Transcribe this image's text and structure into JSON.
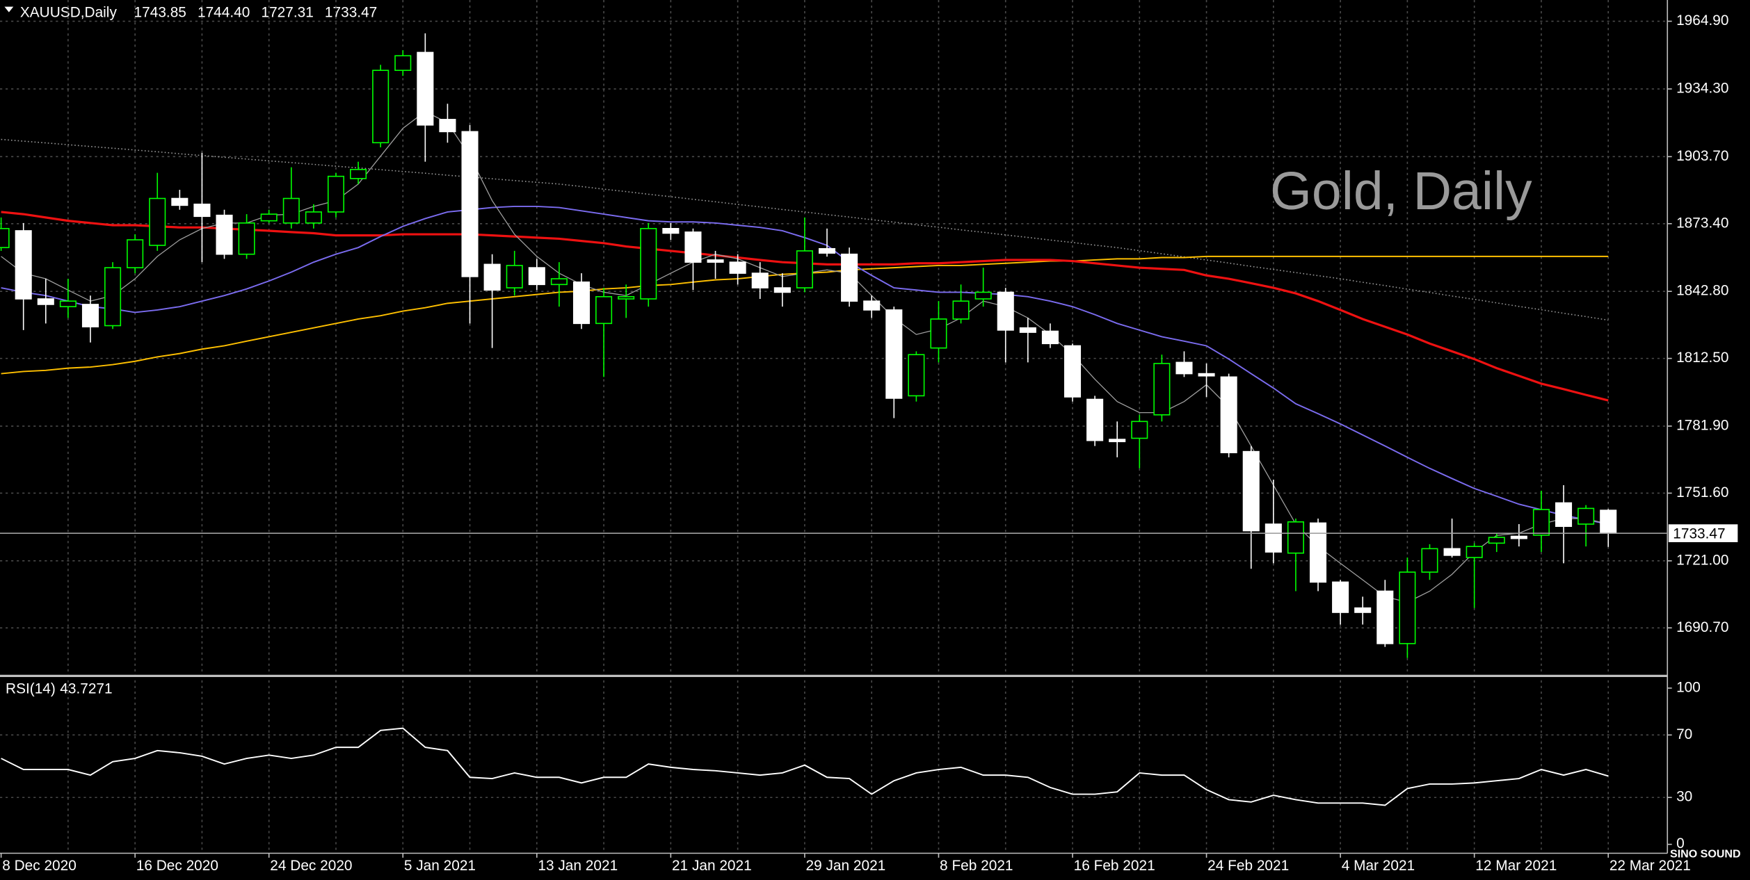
{
  "chart_data": [
    {
      "type": "candlestick",
      "header": {
        "symbol": "XAUUSD,Daily",
        "ohlc": [
          "1743.85",
          "1744.40",
          "1727.31",
          "1733.47"
        ]
      },
      "watermark": "Gold, Daily",
      "categories": [
        "8 Dec 2020",
        null,
        null,
        null,
        null,
        null,
        "16 Dec 2020",
        null,
        null,
        null,
        null,
        null,
        "24 Dec 2020",
        null,
        null,
        null,
        null,
        null,
        "5 Jan 2021",
        null,
        null,
        null,
        null,
        null,
        "13 Jan 2021",
        null,
        null,
        null,
        null,
        null,
        "21 Jan 2021",
        null,
        null,
        null,
        null,
        null,
        "29 Jan 2021",
        null,
        null,
        null,
        null,
        null,
        "8 Feb 2021",
        null,
        null,
        null,
        null,
        null,
        "16 Feb 2021",
        null,
        null,
        null,
        null,
        null,
        "24 Feb 2021",
        null,
        null,
        null,
        null,
        null,
        "4 Mar 2021",
        null,
        null,
        null,
        null,
        null,
        "12 Mar 2021",
        null,
        null,
        null,
        null,
        null,
        "22 Mar 2021"
      ],
      "open": [
        1862.6,
        1870.2,
        1839.4,
        1835.9,
        1836.9,
        1827.3,
        1853.5,
        1863.6,
        1884.8,
        1882.2,
        1877.2,
        1859.6,
        1874.7,
        1873.7,
        1873.7,
        1878.7,
        1893.8,
        1910.0,
        1942.7,
        1950.8,
        1920.5,
        1915.0,
        1855.0,
        1844.4,
        1853.5,
        1845.9,
        1847.0,
        1828.3,
        1839.4,
        1839.4,
        1871.2,
        1869.6,
        1857.0,
        1856.0,
        1851.0,
        1844.4,
        1844.4,
        1862.1,
        1859.6,
        1838.4,
        1834.4,
        1795.6,
        1817.2,
        1830.3,
        1839.4,
        1842.4,
        1826.3,
        1824.8,
        1818.2,
        1794.0,
        1775.9,
        1776.4,
        1787.0,
        1810.7,
        1805.6,
        1804.1,
        1770.4,
        1737.6,
        1724.5,
        1738.1,
        1711.4,
        1699.7,
        1707.3,
        1683.6,
        1715.9,
        1726.5,
        1722.5,
        1729.0,
        1732.1,
        1732.6,
        1747.2,
        1737.6,
        1743.85
      ],
      "high": [
        1876.2,
        1873.7,
        1848.5,
        1848.5,
        1840.9,
        1856.0,
        1868.6,
        1896.4,
        1888.7,
        1905.4,
        1879.7,
        1877.7,
        1879.7,
        1898.9,
        1882.2,
        1896.4,
        1901.4,
        1945.2,
        1951.8,
        1959.4,
        1927.6,
        1918.0,
        1859.6,
        1861.1,
        1857.5,
        1856.0,
        1851.0,
        1844.4,
        1845.9,
        1873.7,
        1873.7,
        1871.2,
        1861.1,
        1859.6,
        1856.0,
        1851.0,
        1876.2,
        1871.2,
        1862.6,
        1840.9,
        1835.9,
        1815.7,
        1838.4,
        1845.9,
        1853.5,
        1844.4,
        1830.8,
        1828.3,
        1819.2,
        1795.6,
        1784.0,
        1787.0,
        1814.2,
        1815.7,
        1810.2,
        1805.6,
        1772.9,
        1757.7,
        1740.1,
        1740.1,
        1712.4,
        1704.8,
        1712.4,
        1722.5,
        1728.5,
        1740.1,
        1729.0,
        1733.6,
        1737.6,
        1752.7,
        1755.2,
        1746.2,
        1744.4
      ],
      "low": [
        1861.1,
        1825.3,
        1828.3,
        1830.8,
        1819.7,
        1825.8,
        1851.0,
        1861.1,
        1879.7,
        1856.0,
        1857.5,
        1857.5,
        1873.7,
        1871.2,
        1871.2,
        1876.2,
        1891.3,
        1907.9,
        1940.2,
        1901.4,
        1910.0,
        1828.3,
        1817.2,
        1840.9,
        1843.4,
        1835.9,
        1825.8,
        1804.1,
        1830.8,
        1835.9,
        1866.1,
        1843.4,
        1848.5,
        1845.9,
        1839.4,
        1835.9,
        1842.4,
        1858.5,
        1835.9,
        1830.8,
        1785.5,
        1793.0,
        1810.7,
        1828.3,
        1835.9,
        1810.7,
        1810.7,
        1817.2,
        1793.0,
        1772.9,
        1767.8,
        1762.8,
        1784.0,
        1804.1,
        1795.1,
        1767.8,
        1717.4,
        1719.9,
        1707.3,
        1707.3,
        1692.2,
        1692.2,
        1682.1,
        1677.1,
        1712.4,
        1722.5,
        1699.7,
        1725.0,
        1727.5,
        1725.0,
        1719.9,
        1727.5,
        1727.31
      ],
      "close": [
        1871.2,
        1839.4,
        1836.9,
        1838.4,
        1826.8,
        1853.5,
        1866.1,
        1884.8,
        1881.7,
        1876.7,
        1859.6,
        1873.7,
        1877.7,
        1884.8,
        1878.7,
        1894.8,
        1897.9,
        1942.7,
        1949.3,
        1918.0,
        1915.0,
        1849.5,
        1843.4,
        1854.5,
        1845.9,
        1848.5,
        1828.3,
        1840.4,
        1840.4,
        1871.2,
        1869.1,
        1856.0,
        1856.0,
        1851.0,
        1844.4,
        1842.4,
        1861.1,
        1860.1,
        1838.4,
        1834.4,
        1794.5,
        1814.2,
        1830.3,
        1838.4,
        1842.4,
        1825.3,
        1824.3,
        1819.2,
        1795.1,
        1775.4,
        1774.9,
        1784.0,
        1810.2,
        1805.6,
        1804.6,
        1769.9,
        1734.6,
        1725.0,
        1738.6,
        1711.4,
        1697.7,
        1697.7,
        1683.6,
        1715.9,
        1726.5,
        1723.5,
        1727.5,
        1731.6,
        1731.1,
        1744.2,
        1736.6,
        1744.7,
        1733.47
      ],
      "up_color": "#00ff00",
      "down_color": "#ffffff",
      "series": [
        {
          "color": "#9a9a9a",
          "style": "dotted",
          "values": [
            1911.5,
            1910.7,
            1909.9,
            1909.1,
            1908.3,
            1907.5,
            1906.7,
            1905.9,
            1905.0,
            1904.2,
            1903.4,
            1902.6,
            1901.8,
            1901.0,
            1900.2,
            1899.4,
            1898.6,
            1897.8,
            1897.0,
            1896.2,
            1895.3,
            1894.5,
            1893.7,
            1892.9,
            1892.1,
            1891.3,
            1890.2,
            1889.0,
            1887.9,
            1886.7,
            1885.6,
            1884.4,
            1883.3,
            1882.1,
            1881.0,
            1879.8,
            1878.7,
            1877.5,
            1876.4,
            1875.2,
            1874.1,
            1872.9,
            1871.8,
            1870.6,
            1869.5,
            1868.3,
            1867.2,
            1866.0,
            1864.9,
            1863.7,
            1862.6,
            1861.2,
            1859.8,
            1858.4,
            1857.0,
            1855.6,
            1854.1,
            1852.7,
            1851.3,
            1849.9,
            1848.5,
            1846.9,
            1845.4,
            1843.8,
            1842.3,
            1840.7,
            1839.2,
            1837.6,
            1836.0,
            1834.5,
            1832.9,
            1831.4,
            1829.8
          ]
        },
        {
          "color": "#ffc000",
          "style": "solid",
          "values": [
            1805.6,
            1806.6,
            1807.1,
            1808.1,
            1808.6,
            1809.7,
            1811.2,
            1813.2,
            1814.7,
            1816.7,
            1818.2,
            1820.3,
            1822.3,
            1824.3,
            1826.3,
            1828.3,
            1830.3,
            1831.8,
            1833.9,
            1835.4,
            1837.4,
            1838.4,
            1839.4,
            1840.4,
            1841.4,
            1842.4,
            1842.9,
            1843.9,
            1844.4,
            1845.4,
            1845.9,
            1847.0,
            1848.0,
            1848.5,
            1849.5,
            1850.5,
            1851.0,
            1851.5,
            1852.5,
            1853.0,
            1853.5,
            1854.0,
            1854.5,
            1854.5,
            1855.0,
            1855.5,
            1856.0,
            1856.5,
            1856.5,
            1857.0,
            1857.5,
            1857.5,
            1858.1,
            1858.1,
            1858.6,
            1858.6,
            1858.6,
            1858.6,
            1858.6,
            1858.6,
            1858.6,
            1858.6,
            1858.6,
            1858.6,
            1858.6,
            1858.6,
            1858.6,
            1858.6,
            1858.6,
            1858.6,
            1858.6,
            1858.6,
            1858.6
          ]
        },
        {
          "color": "#ee1111",
          "style": "thick",
          "values": [
            1878.7,
            1877.7,
            1876.2,
            1874.7,
            1873.7,
            1872.7,
            1872.7,
            1872.2,
            1871.7,
            1871.7,
            1871.2,
            1870.7,
            1870.2,
            1869.6,
            1869.1,
            1868.1,
            1868.1,
            1868.1,
            1868.6,
            1868.6,
            1868.6,
            1868.6,
            1868.1,
            1867.6,
            1867.1,
            1866.6,
            1865.6,
            1864.6,
            1863.1,
            1862.1,
            1861.1,
            1860.1,
            1859.1,
            1858.1,
            1857.0,
            1856.0,
            1855.5,
            1855.0,
            1855.0,
            1855.0,
            1855.0,
            1855.5,
            1855.5,
            1856.0,
            1856.5,
            1857.0,
            1857.0,
            1857.0,
            1856.5,
            1855.5,
            1854.5,
            1853.5,
            1853.0,
            1852.5,
            1850.0,
            1848.5,
            1846.5,
            1844.4,
            1841.9,
            1838.4,
            1834.4,
            1830.3,
            1826.8,
            1823.3,
            1819.2,
            1815.7,
            1812.2,
            1808.1,
            1804.6,
            1801.1,
            1798.6,
            1796.0,
            1793.5
          ]
        },
        {
          "color": "#7b6cf0",
          "style": "solid",
          "values": [
            1844.4,
            1842.4,
            1840.9,
            1838.4,
            1835.9,
            1834.9,
            1833.3,
            1834.4,
            1835.9,
            1838.4,
            1840.9,
            1843.9,
            1847.5,
            1851.5,
            1856.0,
            1859.6,
            1862.6,
            1867.6,
            1872.2,
            1875.7,
            1878.7,
            1879.7,
            1880.7,
            1881.2,
            1881.2,
            1880.7,
            1879.2,
            1877.7,
            1876.2,
            1874.7,
            1874.2,
            1874.2,
            1873.7,
            1872.7,
            1871.7,
            1870.2,
            1867.1,
            1863.6,
            1856.0,
            1850.0,
            1844.4,
            1843.4,
            1842.4,
            1842.4,
            1841.9,
            1841.4,
            1840.4,
            1838.4,
            1835.9,
            1832.3,
            1828.3,
            1825.3,
            1822.3,
            1820.3,
            1818.2,
            1812.2,
            1805.6,
            1799.1,
            1792.0,
            1787.5,
            1782.9,
            1777.9,
            1772.9,
            1767.8,
            1762.8,
            1758.2,
            1753.7,
            1750.2,
            1746.6,
            1744.1,
            1741.6,
            1739.6,
            1737.6
          ]
        },
        {
          "color": "#a0a0a0",
          "style": "thin",
          "values": [
            1858.6,
            1851.0,
            1848.5,
            1843.4,
            1838.4,
            1840.9,
            1848.5,
            1858.6,
            1866.1,
            1871.2,
            1873.7,
            1873.7,
            1877.2,
            1877.7,
            1881.2,
            1883.8,
            1891.3,
            1903.9,
            1916.5,
            1924.1,
            1919.0,
            1903.9,
            1883.8,
            1868.6,
            1858.6,
            1851.0,
            1845.9,
            1842.4,
            1840.9,
            1845.9,
            1851.0,
            1856.0,
            1859.6,
            1857.5,
            1853.5,
            1849.5,
            1851.0,
            1852.5,
            1851.0,
            1840.9,
            1830.8,
            1823.3,
            1825.8,
            1830.8,
            1838.4,
            1835.9,
            1830.8,
            1823.3,
            1814.2,
            1803.1,
            1793.0,
            1788.0,
            1788.0,
            1793.0,
            1800.6,
            1790.5,
            1772.9,
            1755.2,
            1737.6,
            1727.5,
            1719.9,
            1712.4,
            1704.8,
            1702.3,
            1707.3,
            1714.9,
            1725.0,
            1732.5,
            1733.5,
            1737.6,
            1740.1,
            1740.1,
            1737.6
          ]
        }
      ],
      "current_price": 1733.47,
      "ylim": [
        1669.5,
        1974.5
      ],
      "yticks": [
        {
          "value": 1964.9,
          "label": "1964.90"
        },
        {
          "value": 1934.3,
          "label": "1934.30"
        },
        {
          "value": 1903.7,
          "label": "1903.70"
        },
        {
          "value": 1873.4,
          "label": "1873.40"
        },
        {
          "value": 1842.8,
          "label": "1842.80"
        },
        {
          "value": 1812.5,
          "label": "1812.50"
        },
        {
          "value": 1781.9,
          "label": "1781.90"
        },
        {
          "value": 1751.6,
          "label": "1751.60"
        },
        {
          "value": 1721,
          "label": "1721.00"
        },
        {
          "value": 1690.7,
          "label": "1690.70"
        }
      ],
      "grid": true,
      "logo": "SINO SOUND"
    },
    {
      "type": "line",
      "name": "RSI(14)",
      "color": "#ffffff",
      "values": [
        55.0,
        47.9,
        47.9,
        47.9,
        44.3,
        52.9,
        55.0,
        60.0,
        58.6,
        56.4,
        51.4,
        55.0,
        57.1,
        55.0,
        57.1,
        62.1,
        62.1,
        72.9,
        74.3,
        62.1,
        60.0,
        42.9,
        42.1,
        45.7,
        42.9,
        42.9,
        39.3,
        42.9,
        42.9,
        51.4,
        49.3,
        47.9,
        47.1,
        45.7,
        44.3,
        45.7,
        50.7,
        42.9,
        42.1,
        32.1,
        40.7,
        45.7,
        47.9,
        49.3,
        44.3,
        44.3,
        42.9,
        36.4,
        32.1,
        32.1,
        33.6,
        45.7,
        44.3,
        44.3,
        35.0,
        28.6,
        27.1,
        31.4,
        28.6,
        26.4,
        26.4,
        26.4,
        25.0,
        35.7,
        38.6,
        38.6,
        39.3,
        40.7,
        42.1,
        47.9,
        44.3,
        47.9,
        43.7271
      ],
      "ylim": [
        -5.7,
        107.1
      ],
      "yticks": [
        100,
        70,
        30,
        0
      ],
      "grid": true
    }
  ]
}
